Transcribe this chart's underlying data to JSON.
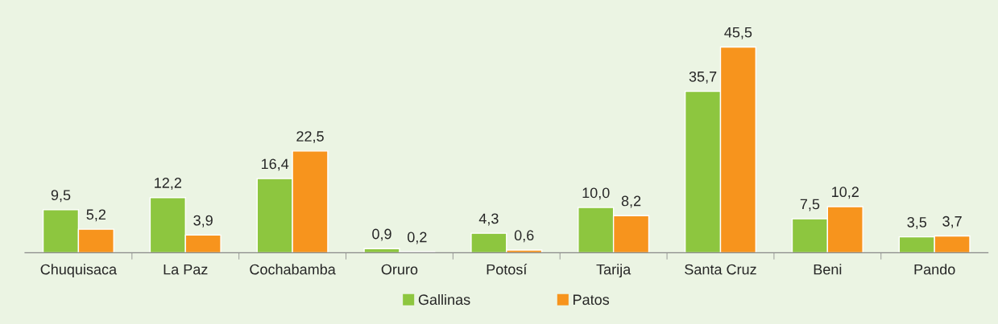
{
  "chart_data": {
    "type": "bar",
    "categories": [
      "Chuquisaca",
      "La Paz",
      "Cochabamba",
      "Oruro",
      "Potosí",
      "Tarija",
      "Santa Cruz",
      "Beni",
      "Pando"
    ],
    "series": [
      {
        "name": "Gallinas",
        "color": "#8dc63f",
        "values": [
          9.5,
          12.2,
          16.4,
          0.9,
          4.3,
          10.0,
          35.7,
          7.5,
          3.5
        ],
        "value_labels": [
          "9,5",
          "12,2",
          "16,4",
          "0,9",
          "4,3",
          "10,0",
          "35,7",
          "7,5",
          "3,5"
        ]
      },
      {
        "name": "Patos",
        "color": "#f7941d",
        "values": [
          5.2,
          3.9,
          22.5,
          0.2,
          0.6,
          8.2,
          45.5,
          10.2,
          3.7
        ],
        "value_labels": [
          "5,2",
          "3,9",
          "22,5",
          "0,2",
          "0,6",
          "8,2",
          "45,5",
          "10,2",
          "3,7"
        ]
      }
    ],
    "grid": false,
    "legend": "bottom"
  }
}
